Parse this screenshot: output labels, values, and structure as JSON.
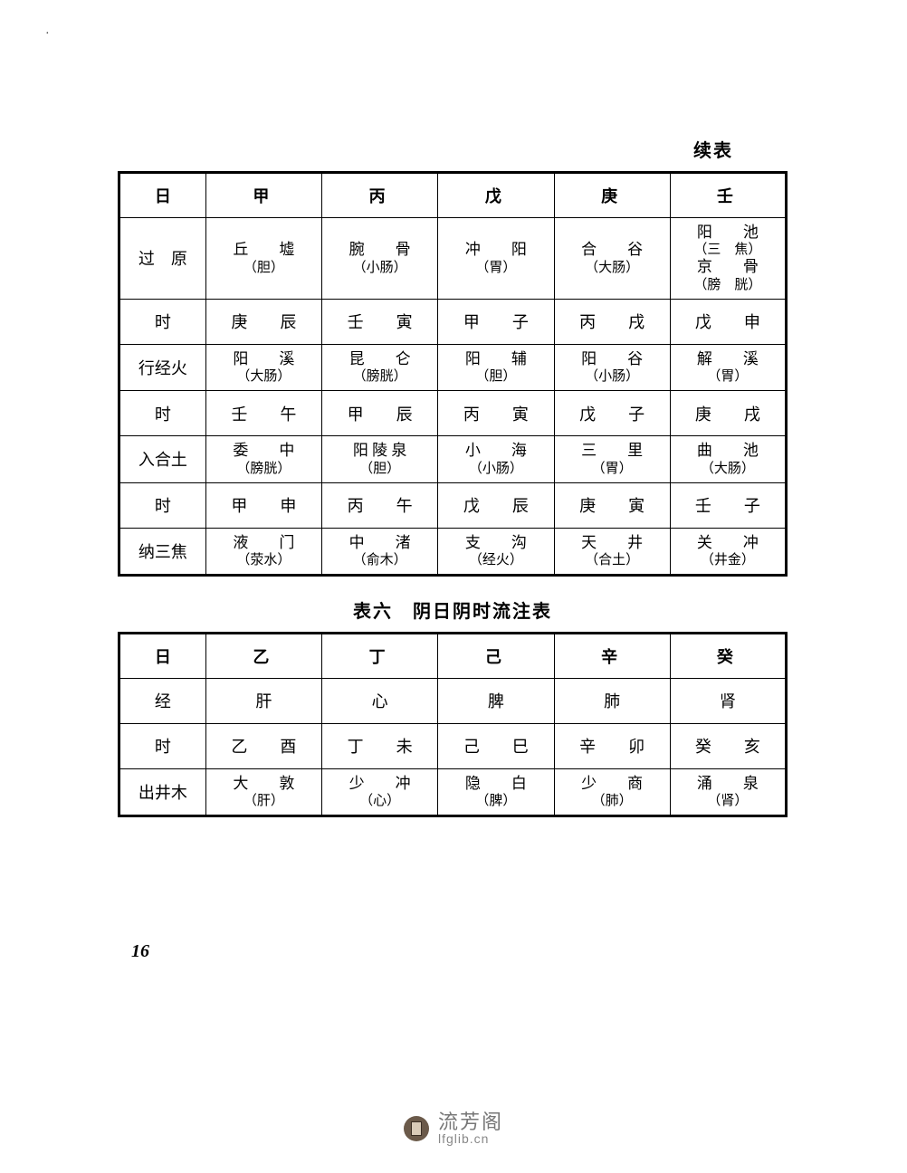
{
  "continuation_label": "续表",
  "table1": {
    "columns": [
      "日",
      "甲",
      "丙",
      "戊",
      "庚",
      "壬"
    ],
    "col_widths_pct": [
      13,
      17.4,
      17.4,
      17.4,
      17.4,
      17.4
    ],
    "rows": [
      {
        "label": "过　原",
        "cells": [
          {
            "main": "丘　　墟",
            "sub": "（胆）"
          },
          {
            "main": "腕　　骨",
            "sub": "（小肠）"
          },
          {
            "main": "冲　　阳",
            "sub": "（胃）"
          },
          {
            "main": "合　　谷",
            "sub": "（大肠）"
          },
          {
            "main": "阳　　池\n（三　焦）\n京　　骨\n（膀　胱）"
          }
        ]
      },
      {
        "label": "时",
        "cells": [
          {
            "main": "庚　　辰"
          },
          {
            "main": "壬　　寅"
          },
          {
            "main": "甲　　子"
          },
          {
            "main": "丙　　戌"
          },
          {
            "main": "戊　　申"
          }
        ]
      },
      {
        "label": "行经火",
        "cells": [
          {
            "main": "阳　　溪",
            "sub": "（大肠）"
          },
          {
            "main": "昆　　仑",
            "sub": "（膀胱）"
          },
          {
            "main": "阳　　辅",
            "sub": "（胆）"
          },
          {
            "main": "阳　　谷",
            "sub": "（小肠）"
          },
          {
            "main": "解　　溪",
            "sub": "（胃）"
          }
        ]
      },
      {
        "label": "时",
        "cells": [
          {
            "main": "壬　　午"
          },
          {
            "main": "甲　　辰"
          },
          {
            "main": "丙　　寅"
          },
          {
            "main": "戊　　子"
          },
          {
            "main": "庚　　戌"
          }
        ]
      },
      {
        "label": "入合土",
        "cells": [
          {
            "main": "委　　中",
            "sub": "（膀胱）"
          },
          {
            "main": "阳 陵 泉",
            "sub": "（胆）"
          },
          {
            "main": "小　　海",
            "sub": "（小肠）"
          },
          {
            "main": "三　　里",
            "sub": "（胃）"
          },
          {
            "main": "曲　　池",
            "sub": "（大肠）"
          }
        ]
      },
      {
        "label": "时",
        "cells": [
          {
            "main": "甲　　申"
          },
          {
            "main": "丙　　午"
          },
          {
            "main": "戊　　辰"
          },
          {
            "main": "庚　　寅"
          },
          {
            "main": "壬　　子"
          }
        ]
      },
      {
        "label": "纳三焦",
        "cells": [
          {
            "main": "液　　门",
            "sub": "（荥水）"
          },
          {
            "main": "中　　渚",
            "sub": "（俞木）"
          },
          {
            "main": "支　　沟",
            "sub": "（经火）"
          },
          {
            "main": "天　　井",
            "sub": "（合土）"
          },
          {
            "main": "关　　冲",
            "sub": "（井金）"
          }
        ]
      }
    ]
  },
  "table2_caption": "表六　阴日阴时流注表",
  "table2": {
    "columns": [
      "日",
      "乙",
      "丁",
      "己",
      "辛",
      "癸"
    ],
    "col_widths_pct": [
      13,
      17.4,
      17.4,
      17.4,
      17.4,
      17.4
    ],
    "rows": [
      {
        "label": "经",
        "cells": [
          {
            "main": "肝"
          },
          {
            "main": "心"
          },
          {
            "main": "脾"
          },
          {
            "main": "肺"
          },
          {
            "main": "肾"
          }
        ]
      },
      {
        "label": "时",
        "cells": [
          {
            "main": "乙　　酉"
          },
          {
            "main": "丁　　未"
          },
          {
            "main": "己　　巳"
          },
          {
            "main": "辛　　卯"
          },
          {
            "main": "癸　　亥"
          }
        ]
      },
      {
        "label": "出井木",
        "cells": [
          {
            "main": "大　　敦",
            "sub": "（肝）"
          },
          {
            "main": "少　　冲",
            "sub": "（心）"
          },
          {
            "main": "隐　　白",
            "sub": "（脾）"
          },
          {
            "main": "少　　商",
            "sub": "（肺）"
          },
          {
            "main": "涌　　泉",
            "sub": "（肾）"
          }
        ]
      }
    ]
  },
  "page_number": "16",
  "footer": {
    "cn": "流芳阁",
    "en": "lfglib.cn"
  },
  "colors": {
    "border": "#000000",
    "text": "#000000",
    "bg": "#ffffff",
    "footer_text": "#777777"
  }
}
